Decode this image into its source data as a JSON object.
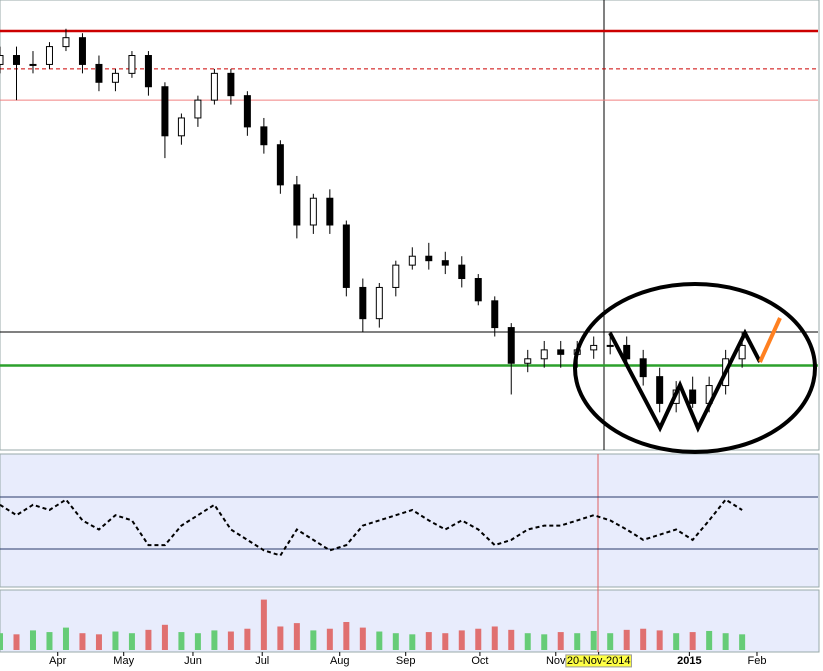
{
  "chart_data": [
    {
      "type": "candlestick",
      "xlim": [
        0,
        49.6
      ],
      "ylim": [
        0,
        100
      ],
      "open": [
        86,
        88,
        86,
        86,
        90,
        92,
        86,
        82,
        84,
        88,
        81,
        70,
        74,
        78,
        84,
        79,
        72,
        68,
        59,
        50,
        56,
        50,
        36,
        29,
        36,
        41,
        43,
        42,
        41,
        38,
        33,
        27,
        19,
        20,
        22,
        21,
        22,
        23,
        23,
        20,
        16,
        10,
        13,
        10,
        14,
        20
      ],
      "high": [
        90,
        90,
        89,
        91,
        94,
        93,
        88,
        85,
        89,
        89,
        82,
        75,
        79,
        85,
        85,
        80,
        74,
        69,
        61,
        57,
        58,
        51,
        38,
        37,
        42,
        45,
        46,
        44,
        43,
        39,
        34,
        28,
        22,
        24,
        24,
        24,
        25,
        26,
        25,
        22,
        18,
        15,
        16,
        16,
        22,
        26
      ],
      "low": [
        84,
        78,
        84,
        85,
        89,
        84,
        80,
        80,
        83,
        79,
        65,
        68,
        72,
        77,
        77,
        70,
        66,
        57,
        47,
        48,
        48,
        34,
        26,
        27,
        34,
        40,
        40,
        39,
        36,
        32,
        25,
        12,
        17,
        18,
        18,
        18,
        20,
        21,
        18,
        14,
        8,
        8,
        9,
        8,
        12,
        18
      ],
      "close": [
        88,
        86,
        86,
        90,
        92,
        86,
        82,
        84,
        88,
        81,
        70,
        74,
        78,
        84,
        79,
        72,
        68,
        59,
        50,
        56,
        50,
        36,
        29,
        36,
        41,
        43,
        42,
        41,
        38,
        33,
        27,
        19,
        20,
        22,
        21,
        22,
        23,
        23,
        20,
        16,
        10,
        13,
        10,
        14,
        20,
        23
      ],
      "levels": [
        {
          "value": 93.5,
          "color": "#cc0000",
          "dash": false
        },
        {
          "value": 85,
          "color": "#cc0000",
          "dash": true
        },
        {
          "value": 78,
          "color": "#f08080",
          "dash": false
        },
        {
          "value": 26,
          "color": "#000000",
          "dash": false
        },
        {
          "value": 18.5,
          "color": "#2ca02c",
          "dash": false
        }
      ]
    },
    {
      "type": "line",
      "xlim": [
        0,
        49.6
      ],
      "ylim": [
        0,
        100
      ],
      "yticks": [
        30,
        70
      ],
      "color": "#000000",
      "values": [
        64,
        56,
        64,
        60,
        68,
        52,
        45,
        56,
        52,
        33,
        33,
        48,
        56,
        64,
        45,
        37,
        29,
        25,
        45,
        37,
        29,
        33,
        48,
        52,
        56,
        60,
        52,
        45,
        52,
        45,
        33,
        37,
        45,
        48,
        48,
        52,
        56,
        52,
        45,
        37,
        41,
        45,
        37,
        52,
        68,
        60
      ]
    },
    {
      "type": "bar",
      "xlim": [
        0,
        49.6
      ],
      "ylim": [
        0,
        100
      ],
      "values": [
        30,
        28,
        35,
        32,
        40,
        30,
        28,
        33,
        30,
        36,
        45,
        32,
        30,
        35,
        33,
        38,
        90,
        42,
        48,
        35,
        38,
        50,
        40,
        33,
        30,
        28,
        32,
        30,
        35,
        38,
        42,
        36,
        30,
        28,
        32,
        30,
        34,
        30,
        36,
        38,
        35,
        30,
        32,
        34,
        30,
        28
      ],
      "xticks": [
        {
          "value": 3.5,
          "label": "Apr"
        },
        {
          "value": 7.5,
          "label": "May"
        },
        {
          "value": 11.7,
          "label": "Jun"
        },
        {
          "value": 15.9,
          "label": "Jul"
        },
        {
          "value": 20.6,
          "label": "Aug"
        },
        {
          "value": 24.6,
          "label": "Sep"
        },
        {
          "value": 29.1,
          "label": "Oct"
        },
        {
          "value": 33.7,
          "label": "Nov"
        },
        {
          "value": 36.3,
          "label": "20-Nov-2014"
        },
        {
          "value": 41.8,
          "label": "2015"
        },
        {
          "value": 45.9,
          "label": "Feb"
        }
      ]
    }
  ]
}
